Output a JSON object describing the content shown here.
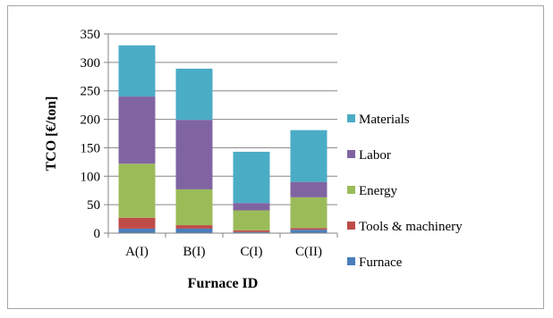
{
  "chart_data": {
    "type": "bar",
    "stacked": true,
    "title": "",
    "xlabel": "Furnace ID",
    "ylabel": "TCO [€/ton]",
    "ylim": [
      0,
      350
    ],
    "yticks": [
      0,
      50,
      100,
      150,
      200,
      250,
      300,
      350
    ],
    "grid": true,
    "legend_position": "right",
    "categories": [
      "A(I)",
      "B(I)",
      "C(I)",
      "C(II)"
    ],
    "series": [
      {
        "name": "Furnace",
        "color": "#4a7ebb",
        "values": [
          8,
          8,
          2,
          6
        ]
      },
      {
        "name": "Tools & machinery",
        "color": "#be4b48",
        "values": [
          19,
          6,
          3,
          3
        ]
      },
      {
        "name": "Energy",
        "color": "#9bbb59",
        "values": [
          95,
          63,
          35,
          54
        ]
      },
      {
        "name": "Labor",
        "color": "#8064a2",
        "values": [
          118,
          122,
          13,
          27
        ]
      },
      {
        "name": "Materials",
        "color": "#4bacc6",
        "values": [
          90,
          90,
          90,
          91
        ]
      }
    ]
  }
}
